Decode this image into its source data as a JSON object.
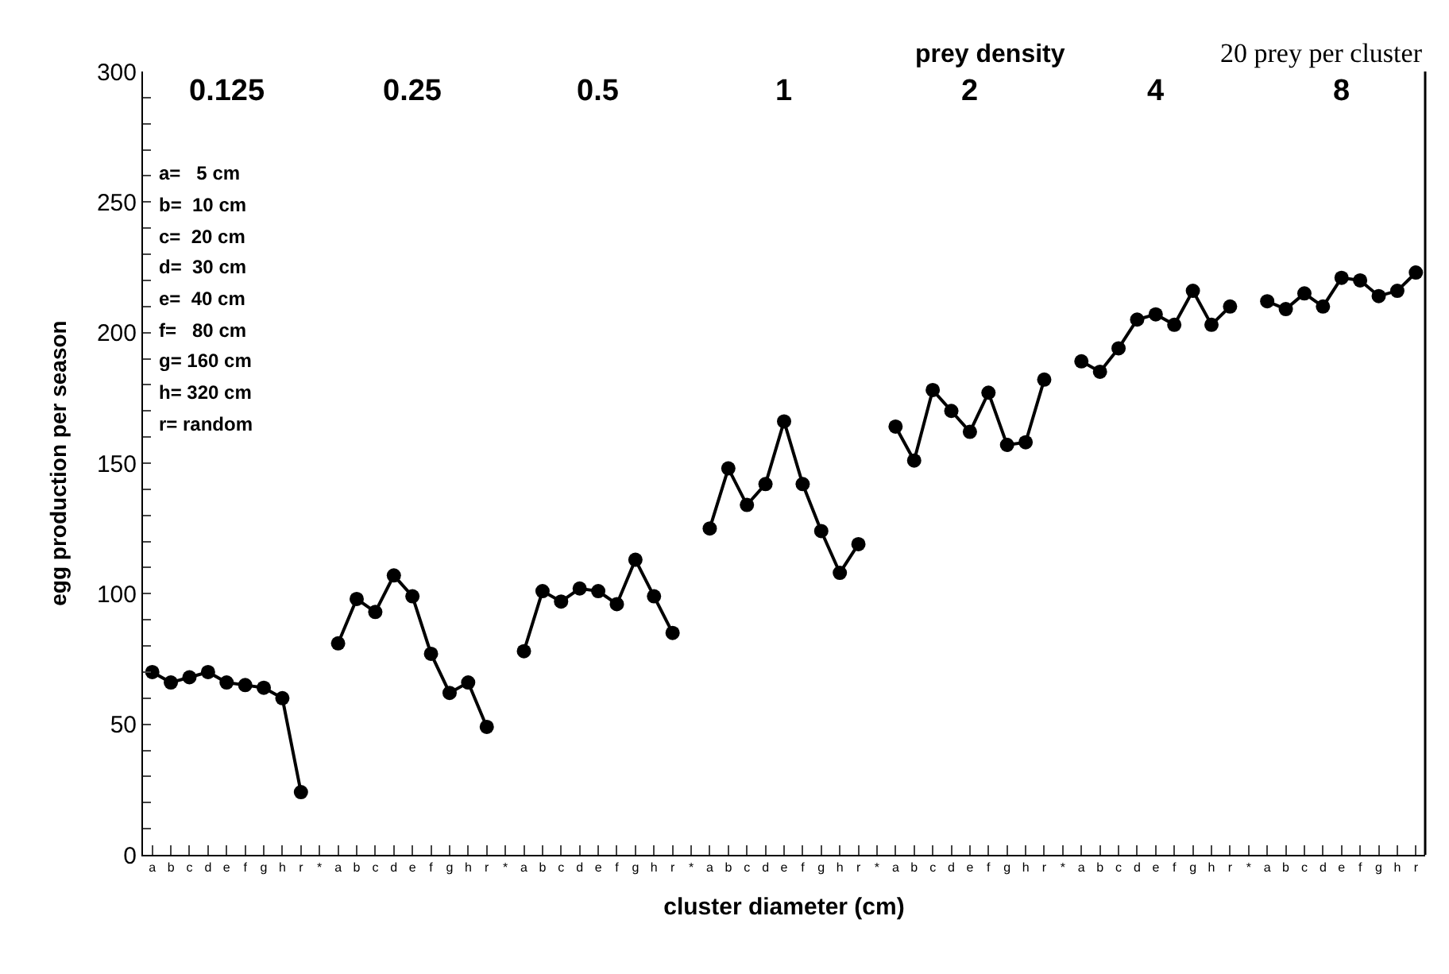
{
  "chart_data": {
    "type": "line",
    "xlabel": "cluster diameter (cm)",
    "ylabel": "egg production per season",
    "categories": [
      "a",
      "b",
      "c",
      "d",
      "e",
      "f",
      "g",
      "h",
      "r",
      "*",
      "a",
      "b",
      "c",
      "d",
      "e",
      "f",
      "g",
      "h",
      "r",
      "*",
      "a",
      "b",
      "c",
      "d",
      "e",
      "f",
      "g",
      "h",
      "r",
      "*",
      "a",
      "b",
      "c",
      "d",
      "e",
      "f",
      "g",
      "h",
      "r",
      "*",
      "a",
      "b",
      "c",
      "d",
      "e",
      "f",
      "g",
      "h",
      "r",
      "*",
      "a",
      "b",
      "c",
      "d",
      "e",
      "f",
      "g",
      "h",
      "r",
      "*",
      "a",
      "b",
      "c",
      "d",
      "e",
      "f",
      "g",
      "h",
      "r"
    ],
    "series": [
      {
        "color": "#000000",
        "values": [
          70,
          66,
          68,
          70,
          66,
          65,
          64,
          60,
          24,
          null,
          81,
          98,
          93,
          107,
          99,
          77,
          62,
          66,
          49,
          null,
          78,
          101,
          97,
          102,
          101,
          96,
          113,
          99,
          85,
          null,
          125,
          148,
          134,
          142,
          166,
          142,
          124,
          108,
          119,
          null,
          164,
          151,
          178,
          170,
          162,
          177,
          157,
          158,
          182,
          null,
          189,
          185,
          194,
          205,
          207,
          203,
          216,
          203,
          210,
          null,
          212,
          209,
          215,
          210,
          221,
          220,
          214,
          216,
          223
        ]
      }
    ],
    "ylim": [
      0,
      300
    ],
    "yticks": [
      0,
      {
        "value": 10,
        "label": null
      },
      {
        "value": 20,
        "label": null
      },
      {
        "value": 30,
        "label": null
      },
      {
        "value": 40,
        "label": null
      },
      50,
      {
        "value": 60,
        "label": null
      },
      {
        "value": 70,
        "label": null
      },
      {
        "value": 80,
        "label": null
      },
      {
        "value": 90,
        "label": null
      },
      100,
      {
        "value": 110,
        "label": null
      },
      {
        "value": 120,
        "label": null
      },
      {
        "value": 130,
        "label": null
      },
      {
        "value": 140,
        "label": null
      },
      150,
      {
        "value": 160,
        "label": null
      },
      {
        "value": 170,
        "label": null
      },
      {
        "value": 180,
        "label": null
      },
      {
        "value": 190,
        "label": null
      },
      200,
      {
        "value": 210,
        "label": null
      },
      {
        "value": 220,
        "label": null
      },
      {
        "value": 230,
        "label": null
      },
      {
        "value": 240,
        "label": null
      },
      250,
      {
        "value": 260,
        "label": null
      },
      {
        "value": 270,
        "label": null
      },
      {
        "value": 280,
        "label": null
      },
      {
        "value": 290,
        "label": null
      },
      300
    ],
    "annotations": [
      "0.125",
      "0.25",
      "0.5",
      "1",
      "2",
      "4",
      "8",
      "prey density",
      "20 prey per cluster",
      "a=   5 cm",
      "b=  10 cm",
      "c=  20 cm",
      "d=  30 cm",
      "e=  40 cm",
      "f=   80 cm",
      "g= 160 cm",
      "h= 320 cm",
      "r= random"
    ],
    "marker": "circle",
    "line_style": "solid"
  }
}
